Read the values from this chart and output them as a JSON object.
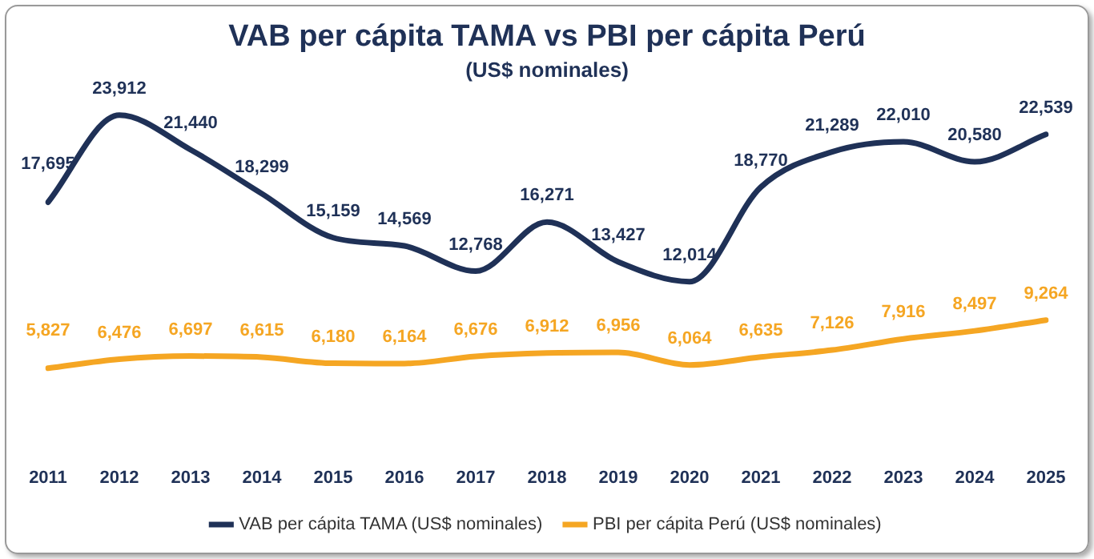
{
  "chart_data": {
    "type": "line",
    "title": "VAB per cápita TAMA vs PBI per cápita Perú",
    "subtitle": "(US$ nominales)",
    "categories": [
      "2011",
      "2012",
      "2013",
      "2014",
      "2015",
      "2016",
      "2017",
      "2018",
      "2019",
      "2020",
      "2021",
      "2022",
      "2023",
      "2024",
      "2025"
    ],
    "series": [
      {
        "name": "VAB per cápita TAMA (US$ nominales)",
        "color": "#1f3157",
        "values": [
          17695,
          23912,
          21440,
          18299,
          15159,
          14569,
          12768,
          16271,
          13427,
          12014,
          18770,
          21289,
          22010,
          20580,
          22539
        ],
        "value_labels": [
          "17,695",
          "23,912",
          "21,440",
          "18,299",
          "15,159",
          "14,569",
          "12,768",
          "16,271",
          "13,427",
          "12,014",
          "18,770",
          "21,289",
          "22,010",
          "20,580",
          "22,539"
        ]
      },
      {
        "name": "PBI per cápita Perú (US$ nominales)",
        "color": "#f5a623",
        "values": [
          5827,
          6476,
          6697,
          6615,
          6180,
          6164,
          6676,
          6912,
          6956,
          6064,
          6635,
          7126,
          7916,
          8497,
          9264
        ],
        "value_labels": [
          "5,827",
          "6,476",
          "6,697",
          "6,615",
          "6,180",
          "6,164",
          "6,676",
          "6,912",
          "6,956",
          "6,064",
          "6,635",
          "7,126",
          "7,916",
          "8,497",
          "9,264"
        ]
      }
    ],
    "legend": "bottom",
    "marker": "none",
    "line_style": "solid",
    "tick_labels": "x"
  }
}
